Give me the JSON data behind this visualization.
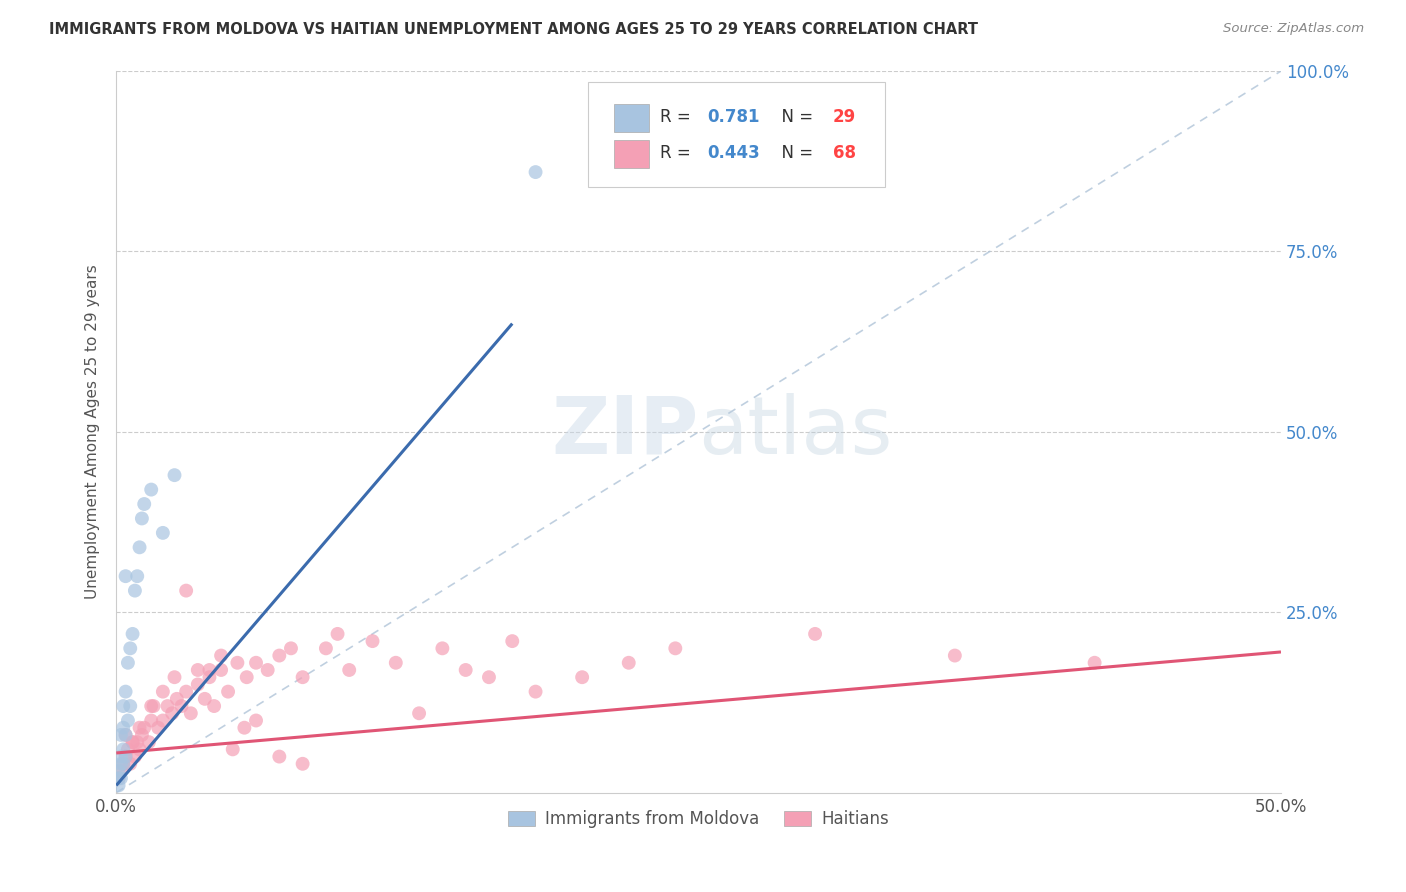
{
  "title": "IMMIGRANTS FROM MOLDOVA VS HAITIAN UNEMPLOYMENT AMONG AGES 25 TO 29 YEARS CORRELATION CHART",
  "source": "Source: ZipAtlas.com",
  "ylabel": "Unemployment Among Ages 25 to 29 years",
  "xlim": [
    0.0,
    0.5
  ],
  "ylim": [
    0.0,
    1.0
  ],
  "blue_color": "#A8C4E0",
  "pink_color": "#F4A0B5",
  "blue_line_color": "#3B6BAD",
  "pink_line_color": "#E05575",
  "gray_dash_color": "#B0C4D8",
  "watermark_color": "#D0DCE8",
  "legend_r1": "0.781",
  "legend_n1": "29",
  "legend_r2": "0.443",
  "legend_n2": "68",
  "legend_color": "#4488CC",
  "legend_bottom_label1": "Immigrants from Moldova",
  "legend_bottom_label2": "Haitians",
  "moldova_x": [
    0.001,
    0.001,
    0.001,
    0.002,
    0.002,
    0.002,
    0.002,
    0.003,
    0.003,
    0.003,
    0.003,
    0.004,
    0.004,
    0.004,
    0.005,
    0.005,
    0.006,
    0.006,
    0.007,
    0.008,
    0.009,
    0.01,
    0.011,
    0.012,
    0.015,
    0.02,
    0.025,
    0.18,
    0.004
  ],
  "moldova_y": [
    0.01,
    0.02,
    0.03,
    0.02,
    0.04,
    0.05,
    0.08,
    0.04,
    0.06,
    0.09,
    0.12,
    0.05,
    0.08,
    0.14,
    0.1,
    0.18,
    0.12,
    0.2,
    0.22,
    0.28,
    0.3,
    0.34,
    0.38,
    0.4,
    0.42,
    0.36,
    0.44,
    0.86,
    0.3
  ],
  "haitian_x": [
    0.001,
    0.002,
    0.003,
    0.004,
    0.005,
    0.006,
    0.007,
    0.008,
    0.009,
    0.01,
    0.011,
    0.012,
    0.014,
    0.015,
    0.016,
    0.018,
    0.02,
    0.022,
    0.024,
    0.026,
    0.028,
    0.03,
    0.032,
    0.035,
    0.038,
    0.04,
    0.042,
    0.045,
    0.048,
    0.052,
    0.056,
    0.06,
    0.065,
    0.07,
    0.075,
    0.08,
    0.09,
    0.095,
    0.1,
    0.11,
    0.12,
    0.13,
    0.14,
    0.15,
    0.16,
    0.17,
    0.18,
    0.2,
    0.22,
    0.24,
    0.004,
    0.007,
    0.01,
    0.015,
    0.02,
    0.025,
    0.03,
    0.035,
    0.04,
    0.045,
    0.05,
    0.055,
    0.06,
    0.07,
    0.08,
    0.3,
    0.36,
    0.42
  ],
  "haitian_y": [
    0.02,
    0.03,
    0.04,
    0.05,
    0.06,
    0.04,
    0.07,
    0.05,
    0.07,
    0.06,
    0.08,
    0.09,
    0.07,
    0.1,
    0.12,
    0.09,
    0.1,
    0.12,
    0.11,
    0.13,
    0.12,
    0.14,
    0.11,
    0.15,
    0.13,
    0.16,
    0.12,
    0.17,
    0.14,
    0.18,
    0.16,
    0.18,
    0.17,
    0.19,
    0.2,
    0.16,
    0.2,
    0.22,
    0.17,
    0.21,
    0.18,
    0.11,
    0.2,
    0.17,
    0.16,
    0.21,
    0.14,
    0.16,
    0.18,
    0.2,
    0.08,
    0.07,
    0.09,
    0.12,
    0.14,
    0.16,
    0.28,
    0.17,
    0.17,
    0.19,
    0.06,
    0.09,
    0.1,
    0.05,
    0.04,
    0.22,
    0.19,
    0.18
  ],
  "blue_trend_x": [
    0.0,
    0.17
  ],
  "blue_trend_y": [
    0.01,
    0.65
  ],
  "pink_trend_x": [
    0.0,
    0.5
  ],
  "pink_trend_y": [
    0.055,
    0.195
  ],
  "dash_line_x": [
    0.0,
    0.5
  ],
  "dash_line_y": [
    0.0,
    1.0
  ]
}
